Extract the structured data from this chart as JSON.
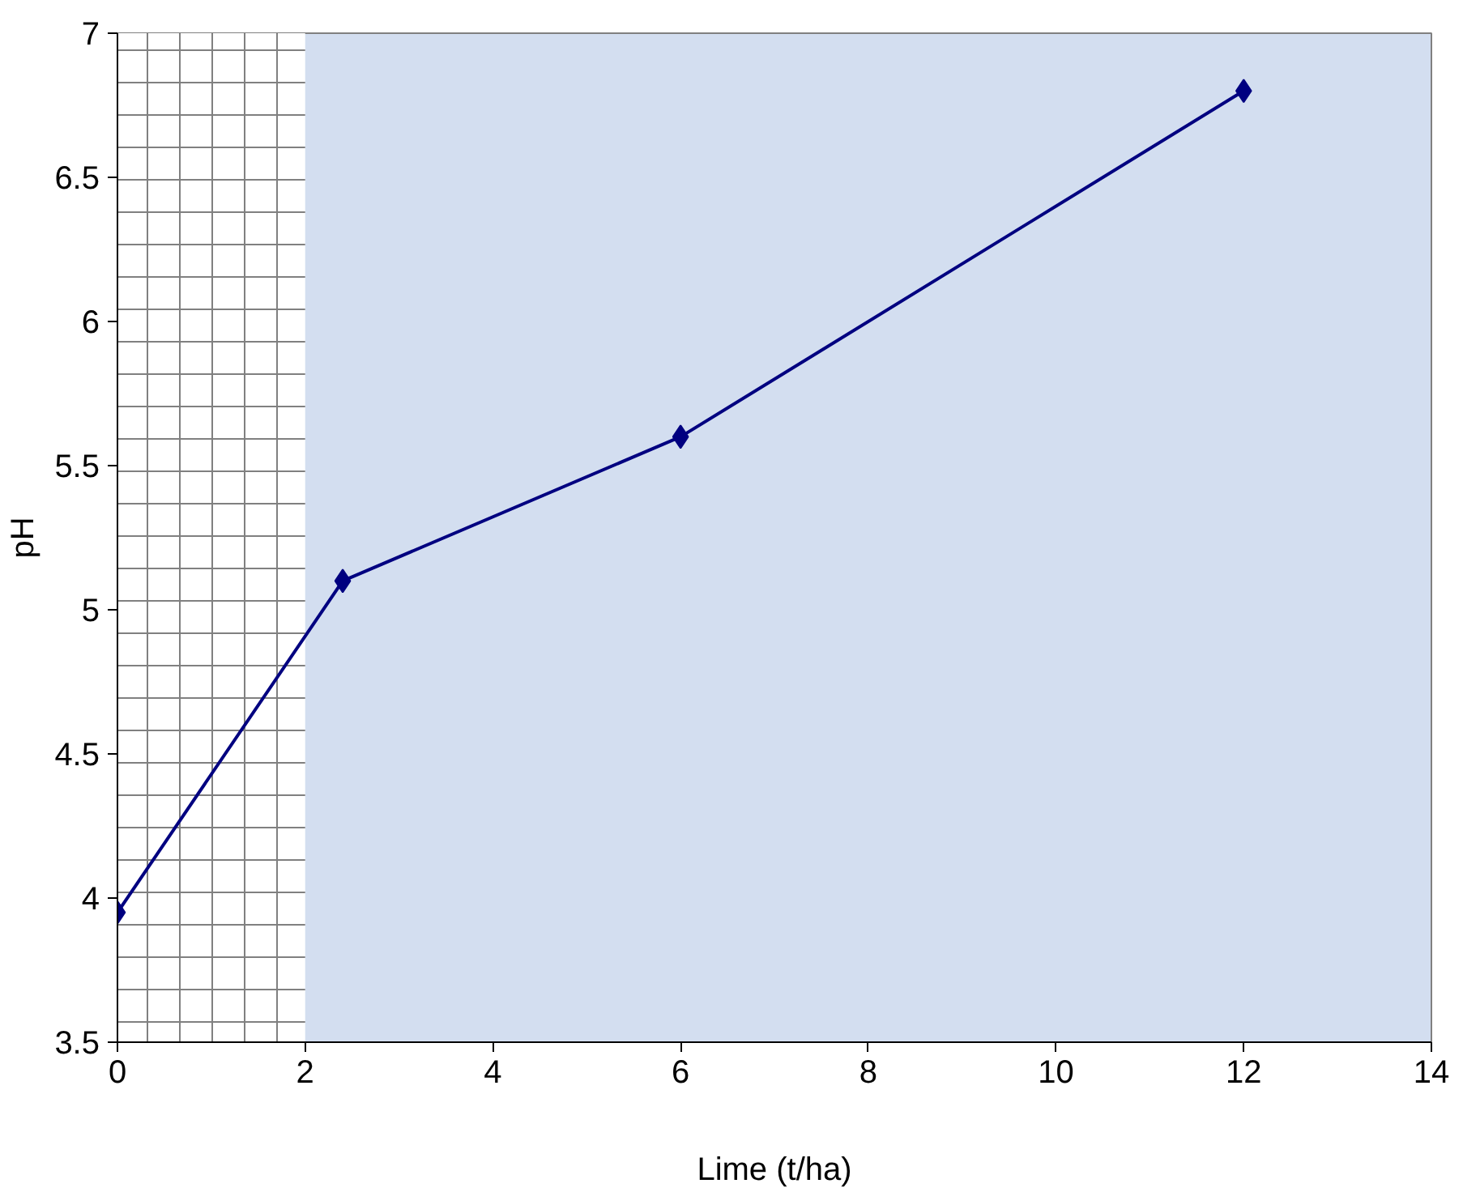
{
  "chart_data": {
    "type": "line",
    "xlabel": "Lime (t/ha)",
    "ylabel": "pH",
    "x": [
      0,
      2.4,
      6,
      12
    ],
    "series": [
      {
        "color": "#000080",
        "values": [
          3.95,
          5.1,
          5.6,
          6.8
        ]
      }
    ],
    "xlim": [
      0,
      14
    ],
    "ylim": [
      3.5,
      7
    ],
    "xticks": [
      0,
      2,
      4,
      6,
      8,
      10,
      12,
      14
    ],
    "yticks": [
      3.5,
      4,
      4.5,
      5,
      5.5,
      6,
      6.5,
      7
    ],
    "bands": [
      {
        "axis": "x",
        "from": 0,
        "to": 2,
        "color": "#ffffff"
      }
    ],
    "grid": false,
    "marker": "diamond",
    "line_style": "solid"
  }
}
